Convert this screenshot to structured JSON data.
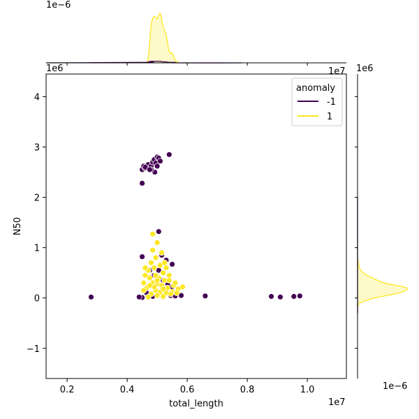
{
  "chart_data": {
    "type": "scatter",
    "xlabel": "total_length",
    "ylabel": "N50",
    "x_multiplier_label": "1e7",
    "y_multiplier_label": "1e6",
    "xlim": [
      1.3,
      11.3
    ],
    "ylim": [
      -1.6,
      4.45
    ],
    "x_ticks": [
      2,
      4,
      6,
      8,
      10
    ],
    "x_tick_labels": [
      "0.2",
      "0.4",
      "0.6",
      "0.8",
      "1.0"
    ],
    "y_ticks": [
      -1,
      0,
      1,
      2,
      3,
      4
    ],
    "y_tick_labels": [
      "−1",
      "0",
      "1",
      "2",
      "3",
      "4"
    ],
    "marg_top_label": "1e−6",
    "marg_top_right_label": "1e7",
    "marg_right_top_label": "1e6",
    "marg_right_bottom_label": "1e−6",
    "legend": {
      "title": "anomaly",
      "placement": "top-right",
      "entries": [
        {
          "label": "-1",
          "color": "#440154"
        },
        {
          "label": "1",
          "color": "#fde725"
        }
      ]
    },
    "series": [
      {
        "name": "-1",
        "color": "#440154",
        "points": [
          [
            4.5,
            2.28
          ],
          [
            4.5,
            2.55
          ],
          [
            4.55,
            2.62
          ],
          [
            4.6,
            2.58
          ],
          [
            4.7,
            2.65
          ],
          [
            4.8,
            2.62
          ],
          [
            4.85,
            2.7
          ],
          [
            4.9,
            2.75
          ],
          [
            4.95,
            2.68
          ],
          [
            5.0,
            2.8
          ],
          [
            5.05,
            2.78
          ],
          [
            4.92,
            2.5
          ],
          [
            4.8,
            2.55
          ],
          [
            5.0,
            2.62
          ],
          [
            5.4,
            2.85
          ],
          [
            4.6,
            2.6
          ],
          [
            4.75,
            2.55
          ],
          [
            5.1,
            2.72
          ],
          [
            5.05,
            1.32
          ],
          [
            5.15,
            0.85
          ],
          [
            5.3,
            0.75
          ],
          [
            5.5,
            0.67
          ],
          [
            4.5,
            0.82
          ],
          [
            4.75,
            0.55
          ],
          [
            4.9,
            0.45
          ],
          [
            5.05,
            0.55
          ],
          [
            5.2,
            0.35
          ],
          [
            5.35,
            0.28
          ],
          [
            5.5,
            0.22
          ],
          [
            5.45,
            0.05
          ],
          [
            5.6,
            0.04
          ],
          [
            5.8,
            0.05
          ],
          [
            4.65,
            0.1
          ],
          [
            4.5,
            0.01
          ],
          [
            4.4,
            0.02
          ],
          [
            4.85,
            0.03
          ],
          [
            5.2,
            0.02
          ],
          [
            2.8,
            0.02
          ],
          [
            6.6,
            0.04
          ],
          [
            8.8,
            0.03
          ],
          [
            9.1,
            0.02
          ],
          [
            9.55,
            0.03
          ],
          [
            9.75,
            0.04
          ]
        ]
      },
      {
        "name": "1",
        "color": "#fde725",
        "points": [
          [
            4.85,
            1.27
          ],
          [
            5.0,
            1.1
          ],
          [
            5.15,
            0.9
          ],
          [
            4.95,
            0.8
          ],
          [
            4.8,
            0.7
          ],
          [
            5.1,
            0.65
          ],
          [
            5.3,
            0.6
          ],
          [
            4.7,
            0.55
          ],
          [
            4.6,
            0.45
          ],
          [
            4.9,
            0.6
          ],
          [
            5.2,
            0.5
          ],
          [
            5.4,
            0.45
          ],
          [
            4.75,
            0.4
          ],
          [
            5.05,
            0.4
          ],
          [
            5.25,
            0.35
          ],
          [
            4.55,
            0.3
          ],
          [
            4.85,
            0.3
          ],
          [
            5.0,
            0.28
          ],
          [
            5.15,
            0.25
          ],
          [
            5.35,
            0.2
          ],
          [
            5.55,
            0.25
          ],
          [
            4.65,
            0.2
          ],
          [
            4.95,
            0.15
          ],
          [
            5.1,
            0.12
          ],
          [
            5.3,
            0.1
          ],
          [
            5.5,
            0.12
          ],
          [
            5.7,
            0.18
          ],
          [
            5.85,
            0.22
          ],
          [
            4.55,
            0.15
          ],
          [
            4.8,
            0.08
          ],
          [
            5.0,
            0.05
          ],
          [
            5.2,
            0.03
          ],
          [
            5.45,
            0.08
          ],
          [
            5.65,
            0.1
          ],
          [
            4.7,
            0.02
          ],
          [
            4.9,
            0.22
          ],
          [
            5.4,
            0.35
          ],
          [
            4.6,
            0.6
          ],
          [
            5.25,
            0.7
          ],
          [
            4.85,
            0.95
          ],
          [
            5.0,
            0.35
          ],
          [
            5.2,
            0.18
          ],
          [
            4.75,
            0.25
          ],
          [
            5.6,
            0.3
          ],
          [
            4.95,
            0.45
          ]
        ]
      }
    ],
    "marginal_x": {
      "x": [
        4.6,
        4.7,
        4.8,
        4.9,
        5.0,
        5.1,
        5.2,
        5.3,
        5.4,
        5.5,
        5.6,
        5.7
      ],
      "density_yellow": [
        0.0,
        0.1,
        0.75,
        0.92,
        0.88,
        0.98,
        0.72,
        0.55,
        0.22,
        0.19,
        0.06,
        0.0
      ],
      "density_purple": [
        0.01,
        0.02,
        0.03,
        0.03,
        0.03,
        0.03,
        0.02,
        0.02,
        0.01,
        0.01,
        0.01,
        0.0
      ]
    },
    "marginal_y": {
      "y": [
        -0.2,
        -0.1,
        0.0,
        0.1,
        0.2,
        0.3,
        0.4,
        0.5,
        0.6,
        0.8
      ],
      "density_yellow": [
        0.0,
        0.05,
        0.35,
        0.85,
        1.0,
        0.55,
        0.3,
        0.12,
        0.04,
        0.0
      ]
    }
  }
}
